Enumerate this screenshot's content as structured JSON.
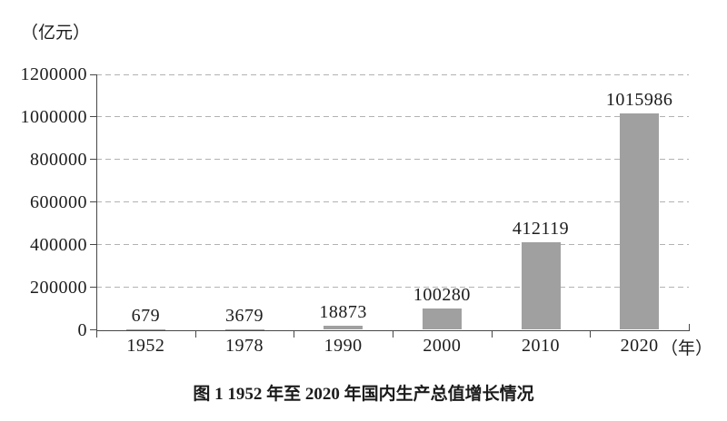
{
  "chart_data": {
    "type": "bar",
    "title": "图 1  1952 年至 2020 年国内生产总值增长情况",
    "ylabel": "（亿元）",
    "xlabel_suffix": "（年）",
    "categories": [
      "1952",
      "1978",
      "1990",
      "2000",
      "2010",
      "2020"
    ],
    "values": [
      679,
      3679,
      18873,
      100280,
      412119,
      1015986
    ],
    "ylim": [
      0,
      1200000
    ],
    "yticks": [
      0,
      200000,
      400000,
      600000,
      800000,
      1000000,
      1200000
    ],
    "grid": "dashed-horizontal",
    "legend": "none",
    "bar_color": "#a0a0a0",
    "value_labels": "above-bars"
  }
}
